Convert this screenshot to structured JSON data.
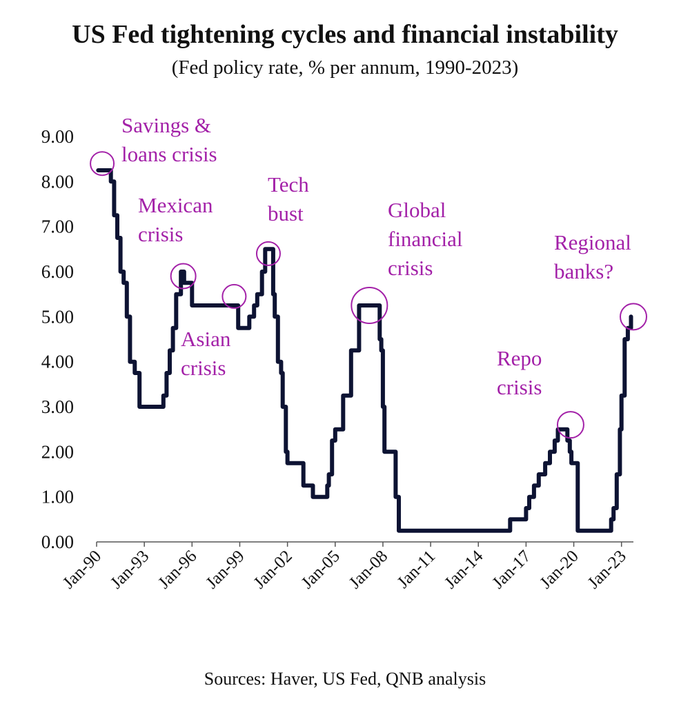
{
  "chart_data": {
    "type": "line",
    "title": "US Fed tightening cycles and financial instability",
    "subtitle": "(Fed policy rate, % per annum, 1990-2023)",
    "source": "Sources: Haver, US Fed, QNB analysis",
    "xlabel": "",
    "ylabel": "",
    "ylim": [
      0,
      9
    ],
    "xlim": [
      1990.0,
      2023.75
    ],
    "y_ticks": [
      "0.00",
      "1.00",
      "2.00",
      "3.00",
      "4.00",
      "5.00",
      "6.00",
      "7.00",
      "8.00",
      "9.00"
    ],
    "x_ticks": [
      {
        "label": "Jan-90",
        "t": 1990
      },
      {
        "label": "Jan-93",
        "t": 1993
      },
      {
        "label": "Jan-96",
        "t": 1996
      },
      {
        "label": "Jan-99",
        "t": 1999
      },
      {
        "label": "Jan-02",
        "t": 2002
      },
      {
        "label": "Jan-05",
        "t": 2005
      },
      {
        "label": "Jan-08",
        "t": 2008
      },
      {
        "label": "Jan-11",
        "t": 2011
      },
      {
        "label": "Jan-14",
        "t": 2014
      },
      {
        "label": "Jan-17",
        "t": 2017
      },
      {
        "label": "Jan-20",
        "t": 2020
      },
      {
        "label": "Jan-23",
        "t": 2023
      }
    ],
    "grid": false,
    "series": [
      {
        "name": "Fed policy rate",
        "color": "#0d1333",
        "x": [
          1990.1,
          1990.6,
          1990.9,
          1991.1,
          1991.3,
          1991.5,
          1991.7,
          1991.9,
          1992.1,
          1992.4,
          1992.7,
          1994.0,
          1994.2,
          1994.4,
          1994.6,
          1994.8,
          1995.0,
          1995.3,
          1995.5,
          1995.9,
          1996.0,
          1998.7,
          1998.9,
          1999.5,
          1999.6,
          1999.9,
          2000.1,
          2000.4,
          2000.6,
          2001.0,
          2001.1,
          2001.2,
          2001.4,
          2001.6,
          2001.7,
          2001.9,
          2002.0,
          2002.9,
          2003.0,
          2003.5,
          2003.6,
          2004.4,
          2004.5,
          2004.6,
          2004.8,
          2005.0,
          2005.5,
          2006.0,
          2006.5,
          2007.6,
          2007.8,
          2007.9,
          2008.0,
          2008.1,
          2008.3,
          2008.8,
          2009.0,
          2015.9,
          2016.0,
          2016.9,
          2017.0,
          2017.2,
          2017.5,
          2017.8,
          2018.2,
          2018.5,
          2018.8,
          2019.0,
          2019.5,
          2019.6,
          2019.75,
          2019.85,
          2020.15,
          2020.25,
          2022.2,
          2022.35,
          2022.5,
          2022.7,
          2022.9,
          2023.0,
          2023.2,
          2023.4,
          2023.6
        ],
        "values": [
          8.25,
          8.25,
          8.0,
          7.25,
          6.75,
          6.0,
          5.75,
          5.0,
          4.0,
          3.75,
          3.0,
          3.0,
          3.25,
          3.75,
          4.25,
          4.75,
          5.5,
          6.0,
          5.75,
          5.75,
          5.25,
          5.25,
          4.75,
          4.75,
          5.0,
          5.25,
          5.5,
          6.0,
          6.5,
          6.5,
          5.5,
          5.0,
          4.0,
          3.75,
          3.0,
          2.0,
          1.75,
          1.75,
          1.25,
          1.25,
          1.0,
          1.0,
          1.25,
          1.5,
          2.25,
          2.5,
          3.25,
          4.25,
          5.25,
          5.25,
          4.5,
          4.25,
          3.0,
          2.0,
          2.0,
          1.0,
          0.25,
          0.25,
          0.5,
          0.5,
          0.75,
          1.0,
          1.25,
          1.5,
          1.75,
          2.0,
          2.25,
          2.5,
          2.5,
          2.25,
          2.0,
          1.75,
          1.75,
          0.25,
          0.25,
          0.5,
          0.75,
          1.5,
          2.5,
          3.25,
          4.5,
          4.75,
          5.0
        ]
      }
    ],
    "annotations": [
      {
        "lines": [
          "Savings &",
          "loans crisis"
        ],
        "t": 1990.35,
        "y": 8.4
      },
      {
        "lines": [
          "Mexican",
          "crisis"
        ],
        "t": 1995.45,
        "y": 5.9
      },
      {
        "lines": [
          "Asian",
          "crisis"
        ],
        "t": 1998.65,
        "y": 5.45
      },
      {
        "lines": [
          "Tech",
          "bust"
        ],
        "t": 2000.8,
        "y": 6.4
      },
      {
        "lines": [
          "Global",
          "financial",
          "crisis"
        ],
        "t": 2007.15,
        "y": 5.25
      },
      {
        "lines": [
          "Repo",
          "crisis"
        ],
        "t": 2019.8,
        "y": 2.6
      },
      {
        "lines": [
          "Regional",
          "banks?"
        ],
        "t": 2023.75,
        "y": 5.0
      }
    ]
  }
}
